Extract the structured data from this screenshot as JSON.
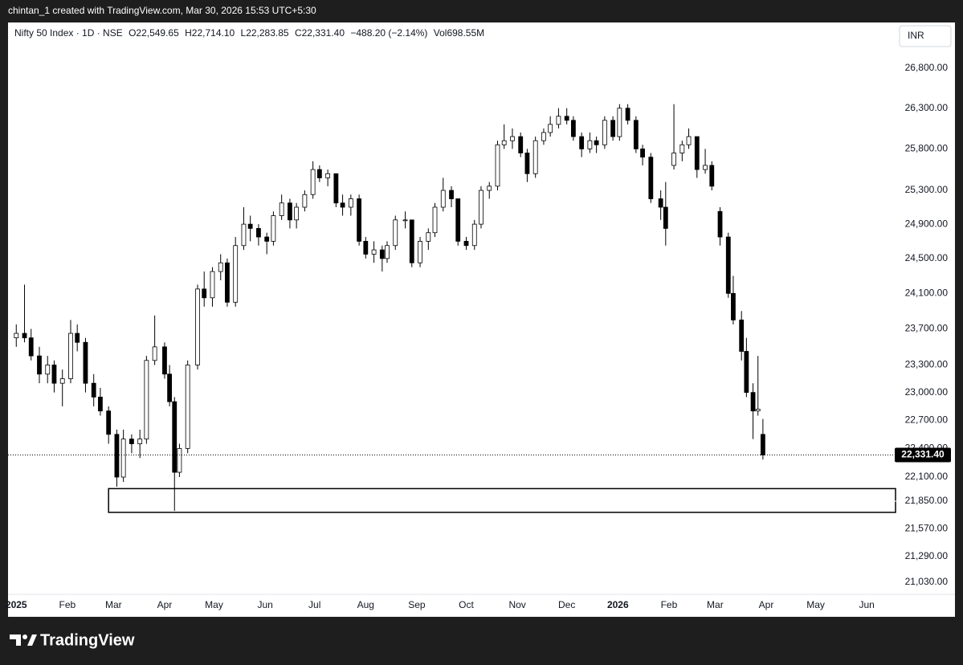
{
  "header": "chintan_1 created with TradingView.com, Mar 30, 2026 15:53 UTC+5:30",
  "brand": "TradingView",
  "currency": "INR",
  "legend": {
    "symbol": "Nifty 50 Index · 1D · NSE",
    "open": "O22,549.65",
    "high": "H22,714.10",
    "low": "L22,283.85",
    "close": "C22,331.40",
    "change": "−488.20 (−2.14%)",
    "volume": "Vol698.55M"
  },
  "chart_data": {
    "type": "candlestick",
    "log_scale": true,
    "up_color": "#ffffff",
    "down_color": "#000000",
    "border_color": "#000000",
    "last_price_label": "22,331.40",
    "xlim": [
      "2024-12-27",
      "2026-06-17"
    ],
    "ylim": [
      20911,
      27385
    ],
    "xticks": [
      {
        "value": "2025-01-01",
        "label": "2025"
      },
      {
        "value": "2025-02-01",
        "label": "Feb"
      },
      {
        "value": "2025-03-01",
        "label": "Mar"
      },
      {
        "value": "2025-04-01",
        "label": "Apr"
      },
      {
        "value": "2025-05-01",
        "label": "May"
      },
      {
        "value": "2025-06-01",
        "label": "Jun"
      },
      {
        "value": "2025-07-01",
        "label": "Jul"
      },
      {
        "value": "2025-08-01",
        "label": "Aug"
      },
      {
        "value": "2025-09-01",
        "label": "Sep"
      },
      {
        "value": "2025-10-01",
        "label": "Oct"
      },
      {
        "value": "2025-11-01",
        "label": "Nov"
      },
      {
        "value": "2025-12-01",
        "label": "Dec"
      },
      {
        "value": "2026-01-01",
        "label": "2026"
      },
      {
        "value": "2026-02-01",
        "label": "Feb"
      },
      {
        "value": "2026-03-01",
        "label": "Mar"
      },
      {
        "value": "2026-04-01",
        "label": "Apr"
      },
      {
        "value": "2026-05-01",
        "label": "May"
      },
      {
        "value": "2026-06-01",
        "label": "Jun"
      }
    ],
    "yticks": [
      {
        "value": 26800,
        "label": "26,800.00"
      },
      {
        "value": 26300,
        "label": "26,300.00"
      },
      {
        "value": 25800,
        "label": "25,800.00"
      },
      {
        "value": 25300,
        "label": "25,300.00"
      },
      {
        "value": 24900,
        "label": "24,900.00"
      },
      {
        "value": 24500,
        "label": "24,500.00"
      },
      {
        "value": 24100,
        "label": "24,100.00"
      },
      {
        "value": 23700,
        "label": "23,700.00"
      },
      {
        "value": 23300,
        "label": "23,300.00"
      },
      {
        "value": 23000,
        "label": "23,000.00"
      },
      {
        "value": 22700,
        "label": "22,700.00"
      },
      {
        "value": 22400,
        "label": "22,400.00"
      },
      {
        "value": 22100,
        "label": "22,100.00"
      },
      {
        "value": 21850,
        "label": "21,850.00"
      },
      {
        "value": 21570,
        "label": "21,570.00"
      },
      {
        "value": 21290,
        "label": "21,290.00"
      },
      {
        "value": 21030,
        "label": "21,030.00"
      }
    ],
    "zone": {
      "start": "2025-02-26",
      "top": 21980,
      "bottom": 21735
    },
    "x": [
      "2025-01-01",
      "2025-01-06",
      "2025-01-10",
      "2025-01-15",
      "2025-01-20",
      "2025-01-24",
      "2025-01-29",
      "2025-02-03",
      "2025-02-07",
      "2025-02-12",
      "2025-02-17",
      "2025-02-21",
      "2025-02-26",
      "2025-03-03",
      "2025-03-07",
      "2025-03-12",
      "2025-03-17",
      "2025-03-21",
      "2025-03-26",
      "2025-04-01",
      "2025-04-04",
      "2025-04-07",
      "2025-04-10",
      "2025-04-15",
      "2025-04-21",
      "2025-04-25",
      "2025-04-30",
      "2025-05-05",
      "2025-05-09",
      "2025-05-14",
      "2025-05-19",
      "2025-05-23",
      "2025-05-28",
      "2025-06-02",
      "2025-06-06",
      "2025-06-11",
      "2025-06-16",
      "2025-06-20",
      "2025-06-25",
      "2025-06-30",
      "2025-07-04",
      "2025-07-09",
      "2025-07-14",
      "2025-07-18",
      "2025-07-23",
      "2025-07-28",
      "2025-08-01",
      "2025-08-06",
      "2025-08-11",
      "2025-08-14",
      "2025-08-19",
      "2025-08-25",
      "2025-08-29",
      "2025-09-03",
      "2025-09-08",
      "2025-09-12",
      "2025-09-17",
      "2025-09-22",
      "2025-09-26",
      "2025-10-01",
      "2025-10-06",
      "2025-10-10",
      "2025-10-15",
      "2025-10-20",
      "2025-10-24",
      "2025-10-29",
      "2025-11-03",
      "2025-11-07",
      "2025-11-12",
      "2025-11-17",
      "2025-11-21",
      "2025-11-26",
      "2025-12-01",
      "2025-12-05",
      "2025-12-10",
      "2025-12-15",
      "2025-12-19",
      "2025-12-24",
      "2025-12-29",
      "2026-01-02",
      "2026-01-07",
      "2026-01-12",
      "2026-01-16",
      "2026-01-21",
      "2026-01-27",
      "2026-01-30",
      "2026-02-04",
      "2026-02-09",
      "2026-02-13",
      "2026-02-18",
      "2026-02-23",
      "2026-02-27",
      "2026-03-04",
      "2026-03-09",
      "2026-03-12",
      "2026-03-17",
      "2026-03-20",
      "2026-03-24",
      "2026-03-27",
      "2026-03-30"
    ],
    "open": [
      23600,
      23650,
      23600,
      23400,
      23200,
      23300,
      23100,
      23150,
      23650,
      23550,
      23100,
      22950,
      22800,
      22550,
      22100,
      22500,
      22450,
      22500,
      23350,
      23500,
      23200,
      22900,
      22150,
      22400,
      23300,
      24150,
      24050,
      24350,
      24450,
      24000,
      24650,
      24900,
      24850,
      24750,
      24700,
      25000,
      25150,
      24950,
      25100,
      25250,
      25550,
      25450,
      25500,
      25150,
      25100,
      25200,
      24700,
      24550,
      24600,
      24500,
      24650,
      24950,
      24950,
      24450,
      24700,
      24800,
      25100,
      25300,
      25200,
      24700,
      24650,
      24900,
      25300,
      25350,
      25850,
      25900,
      25950,
      25750,
      25500,
      25900,
      26000,
      26100,
      26200,
      26150,
      25950,
      25800,
      25900,
      25850,
      26150,
      25950,
      26300,
      26150,
      25800,
      25700,
      25200,
      25100,
      25600,
      25750,
      25850,
      25950,
      25550,
      25600,
      25050,
      24750,
      24100,
      23800,
      23450,
      23000,
      22800,
      22549.65
    ],
    "high": [
      23750,
      24200,
      23700,
      23500,
      23400,
      23350,
      23250,
      23800,
      23750,
      23600,
      23200,
      23050,
      22850,
      22600,
      22600,
      22550,
      22600,
      23400,
      23850,
      23550,
      23300,
      22950,
      22450,
      23350,
      24200,
      24350,
      24400,
      24550,
      24500,
      24750,
      25100,
      25000,
      24900,
      24800,
      25050,
      25250,
      25200,
      25150,
      25300,
      25650,
      25600,
      25550,
      25500,
      25250,
      25250,
      25250,
      24750,
      24700,
      24650,
      24700,
      25000,
      25050,
      24950,
      24750,
      24850,
      25150,
      25450,
      25350,
      25200,
      24750,
      24950,
      25350,
      25400,
      25900,
      26100,
      26050,
      26000,
      25800,
      25950,
      26050,
      26200,
      26300,
      26300,
      26200,
      26000,
      26000,
      25950,
      26200,
      26200,
      26350,
      26350,
      26200,
      25850,
      25750,
      25300,
      25400,
      26350,
      25900,
      26050,
      25950,
      25800,
      25650,
      25100,
      24800,
      24300,
      23900,
      23600,
      23100,
      23400,
      22714.1
    ],
    "low": [
      23500,
      23550,
      23350,
      23100,
      23100,
      23000,
      22850,
      23100,
      23450,
      23000,
      22850,
      22750,
      22450,
      22000,
      22050,
      22350,
      22300,
      22450,
      23300,
      23150,
      22850,
      21750,
      22100,
      22350,
      23250,
      23950,
      23950,
      24250,
      23950,
      23950,
      24600,
      24700,
      24650,
      24550,
      24650,
      24950,
      24850,
      24850,
      25050,
      25200,
      25400,
      25350,
      25100,
      25000,
      25000,
      24650,
      24500,
      24450,
      24350,
      24450,
      24600,
      24850,
      24400,
      24400,
      24600,
      24750,
      25050,
      25100,
      24650,
      24600,
      24600,
      24850,
      25200,
      25300,
      25800,
      25800,
      25700,
      25400,
      25450,
      25850,
      25950,
      26050,
      26100,
      25900,
      25700,
      25750,
      25750,
      25800,
      25900,
      25900,
      26100,
      25750,
      25600,
      25150,
      24950,
      24650,
      25550,
      25650,
      25800,
      25450,
      25500,
      25300,
      24650,
      24050,
      23750,
      23350,
      22950,
      22500,
      22750,
      22283.85
    ],
    "close": [
      23650,
      23600,
      23400,
      23200,
      23300,
      23100,
      23150,
      23650,
      23550,
      23100,
      22950,
      22800,
      22550,
      22100,
      22500,
      22450,
      22500,
      23350,
      23500,
      23200,
      22900,
      22150,
      22400,
      23300,
      24150,
      24050,
      24350,
      24450,
      24000,
      24650,
      24900,
      24850,
      24750,
      24700,
      25000,
      25150,
      24950,
      25100,
      25250,
      25550,
      25450,
      25500,
      25150,
      25100,
      25200,
      24700,
      24550,
      24600,
      24500,
      24650,
      24950,
      24950,
      24450,
      24700,
      24800,
      25100,
      25300,
      25200,
      24700,
      24650,
      24900,
      25300,
      25350,
      25850,
      25900,
      25950,
      25750,
      25500,
      25900,
      26000,
      26100,
      26200,
      26150,
      25950,
      25800,
      25900,
      25850,
      26150,
      25950,
      26300,
      26150,
      25800,
      25700,
      25200,
      25100,
      24850,
      25750,
      25850,
      25950,
      25550,
      25600,
      25350,
      24750,
      24100,
      23800,
      23450,
      23000,
      22800,
      22819.6,
      22331.4
    ]
  }
}
